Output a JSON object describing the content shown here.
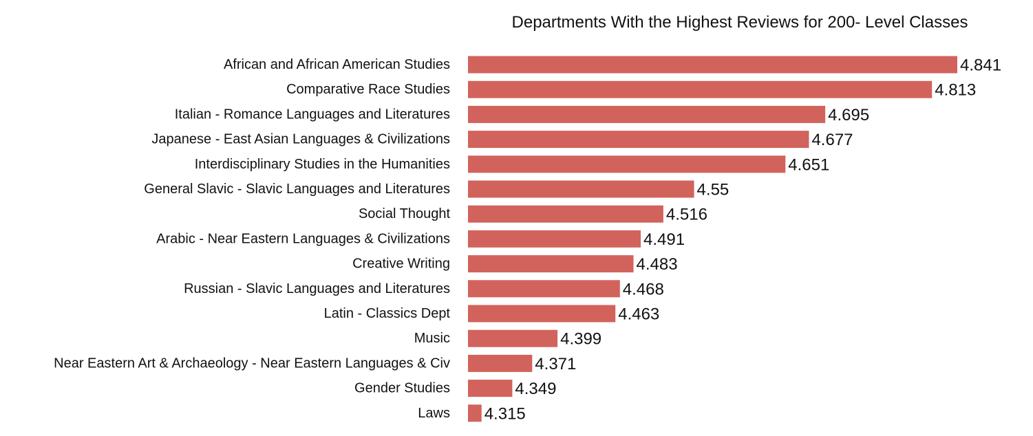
{
  "chart_data": {
    "type": "bar",
    "orientation": "horizontal",
    "title": "Departments With the Highest Reviews for 200- Level Classes",
    "xlabel": "",
    "ylabel": "",
    "grid": false,
    "bar_color": "#d2635c",
    "xlim": [
      4.3,
      4.841
    ],
    "categories": [
      "African and African American Studies",
      "Comparative Race Studies",
      "Italian - Romance Languages and Literatures",
      "Japanese - East Asian Languages & Civilizations",
      "Interdisciplinary Studies in the Humanities",
      "General Slavic - Slavic Languages and Literatures",
      "Social Thought",
      "Arabic - Near Eastern Languages & Civilizations",
      "Creative Writing",
      "Russian - Slavic Languages and Literatures",
      "Latin - Classics  Dept",
      "Music",
      "Near Eastern Art & Archaeology - Near Eastern Languages & Civ",
      "Gender Studies",
      "Laws"
    ],
    "values": [
      4.841,
      4.813,
      4.695,
      4.677,
      4.651,
      4.55,
      4.516,
      4.491,
      4.483,
      4.468,
      4.463,
      4.399,
      4.371,
      4.349,
      4.315
    ],
    "value_labels": [
      "4.841",
      "4.813",
      "4.695",
      "4.677",
      "4.651",
      "4.55",
      "4.516",
      "4.491",
      "4.483",
      "4.468",
      "4.463",
      "4.399",
      "4.371",
      "4.349",
      "4.315"
    ]
  }
}
